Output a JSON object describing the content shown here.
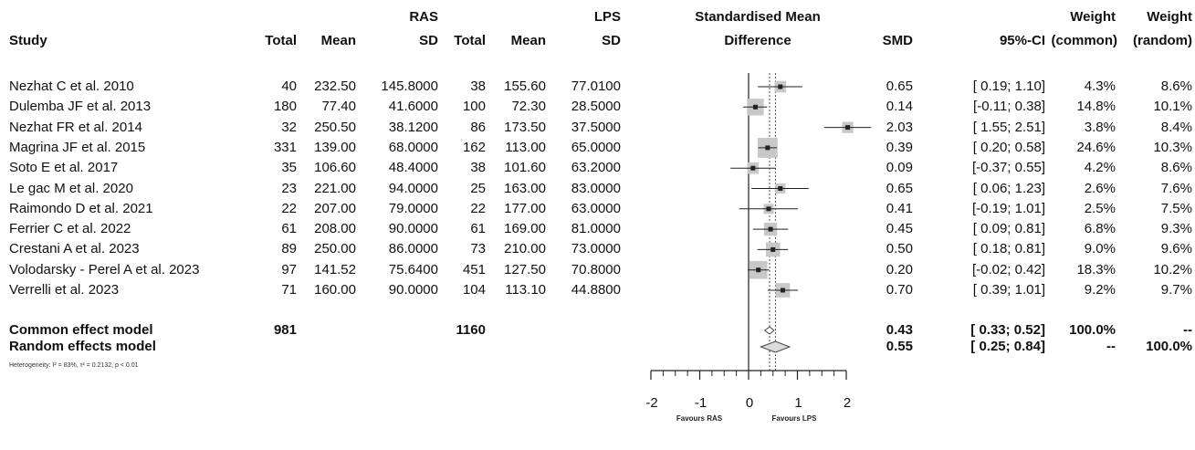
{
  "chart_data": {
    "type": "forest",
    "group_labels": {
      "ras": "RAS",
      "lps": "LPS"
    },
    "headers": {
      "study": "Study",
      "ras_total": "Total",
      "ras_mean": "Mean",
      "ras_sd": "SD",
      "lps_total": "Total",
      "lps_mean": "Mean",
      "lps_sd": "SD",
      "plot_title_1": "Standardised Mean",
      "plot_title_2": "Difference",
      "smd": "SMD",
      "ci": "95%-CI",
      "w_common_1": "Weight",
      "w_common_2": "(common)",
      "w_random_1": "Weight",
      "w_random_2": "(random)"
    },
    "studies": [
      {
        "study": "Nezhat C et al. 2010",
        "ras_total": "40",
        "ras_mean": "232.50",
        "ras_sd": "145.8000",
        "lps_total": "38",
        "lps_mean": "155.60",
        "lps_sd": "77.0100",
        "smd": 0.65,
        "lower": 0.19,
        "upper": 1.1,
        "smd_text": "0.65",
        "ci_text": "[ 0.19; 1.10]",
        "w_common": "4.3%",
        "w_random": "8.6%"
      },
      {
        "study": "Dulemba JF et al. 2013",
        "ras_total": "180",
        "ras_mean": "77.40",
        "ras_sd": "41.6000",
        "lps_total": "100",
        "lps_mean": "72.30",
        "lps_sd": "28.5000",
        "smd": 0.14,
        "lower": -0.11,
        "upper": 0.38,
        "smd_text": "0.14",
        "ci_text": "[-0.11; 0.38]",
        "w_common": "14.8%",
        "w_random": "10.1%"
      },
      {
        "study": "Nezhat FR et al. 2014",
        "ras_total": "32",
        "ras_mean": "250.50",
        "ras_sd": "38.1200",
        "lps_total": "86",
        "lps_mean": "173.50",
        "lps_sd": "37.5000",
        "smd": 2.03,
        "lower": 1.55,
        "upper": 2.51,
        "smd_text": "2.03",
        "ci_text": "[ 1.55; 2.51]",
        "w_common": "3.8%",
        "w_random": "8.4%"
      },
      {
        "study": "Magrina JF et al. 2015",
        "ras_total": "331",
        "ras_mean": "139.00",
        "ras_sd": "68.0000",
        "lps_total": "162",
        "lps_mean": "113.00",
        "lps_sd": "65.0000",
        "smd": 0.39,
        "lower": 0.2,
        "upper": 0.58,
        "smd_text": "0.39",
        "ci_text": "[ 0.20; 0.58]",
        "w_common": "24.6%",
        "w_random": "10.3%"
      },
      {
        "study": "Soto E et al. 2017",
        "ras_total": "35",
        "ras_mean": "106.60",
        "ras_sd": "48.4000",
        "lps_total": "38",
        "lps_mean": "101.60",
        "lps_sd": "63.2000",
        "smd": 0.09,
        "lower": -0.37,
        "upper": 0.55,
        "smd_text": "0.09",
        "ci_text": "[-0.37; 0.55]",
        "w_common": "4.2%",
        "w_random": "8.6%"
      },
      {
        "study": "Le gac M et al. 2020",
        "ras_total": "23",
        "ras_mean": "221.00",
        "ras_sd": "94.0000",
        "lps_total": "25",
        "lps_mean": "163.00",
        "lps_sd": "83.0000",
        "smd": 0.65,
        "lower": 0.06,
        "upper": 1.23,
        "smd_text": "0.65",
        "ci_text": "[ 0.06; 1.23]",
        "w_common": "2.6%",
        "w_random": "7.6%"
      },
      {
        "study": "Raimondo D et al. 2021",
        "ras_total": "22",
        "ras_mean": "207.00",
        "ras_sd": "79.0000",
        "lps_total": "22",
        "lps_mean": "177.00",
        "lps_sd": "63.0000",
        "smd": 0.41,
        "lower": -0.19,
        "upper": 1.01,
        "smd_text": "0.41",
        "ci_text": "[-0.19; 1.01]",
        "w_common": "2.5%",
        "w_random": "7.5%"
      },
      {
        "study": "Ferrier C et al. 2022",
        "ras_total": "61",
        "ras_mean": "208.00",
        "ras_sd": "90.0000",
        "lps_total": "61",
        "lps_mean": "169.00",
        "lps_sd": "81.0000",
        "smd": 0.45,
        "lower": 0.09,
        "upper": 0.81,
        "smd_text": "0.45",
        "ci_text": "[ 0.09; 0.81]",
        "w_common": "6.8%",
        "w_random": "9.3%"
      },
      {
        "study": "Crestani A et al. 2023",
        "ras_total": "89",
        "ras_mean": "250.00",
        "ras_sd": "86.0000",
        "lps_total": "73",
        "lps_mean": "210.00",
        "lps_sd": "73.0000",
        "smd": 0.5,
        "lower": 0.18,
        "upper": 0.81,
        "smd_text": "0.50",
        "ci_text": "[ 0.18; 0.81]",
        "w_common": "9.0%",
        "w_random": "9.6%"
      },
      {
        "study": "Volodarsky - Perel A et al. 2023",
        "ras_total": "97",
        "ras_mean": "141.52",
        "ras_sd": "75.6400",
        "lps_total": "451",
        "lps_mean": "127.50",
        "lps_sd": "70.8000",
        "smd": 0.2,
        "lower": -0.02,
        "upper": 0.42,
        "smd_text": "0.20",
        "ci_text": "[-0.02; 0.42]",
        "w_common": "18.3%",
        "w_random": "10.2%"
      },
      {
        "study": "Verrelli et al. 2023",
        "ras_total": "71",
        "ras_mean": "160.00",
        "ras_sd": "90.0000",
        "lps_total": "104",
        "lps_mean": "113.10",
        "lps_sd": "44.8800",
        "smd": 0.7,
        "lower": 0.39,
        "upper": 1.01,
        "smd_text": "0.70",
        "ci_text": "[ 0.39; 1.01]",
        "w_common": "9.2%",
        "w_random": "9.7%"
      }
    ],
    "summaries": [
      {
        "label": "Common effect model",
        "ras_total": "981",
        "lps_total": "1160",
        "smd": 0.43,
        "lower": 0.33,
        "upper": 0.52,
        "smd_text": "0.43",
        "ci_text": "[ 0.33; 0.52]",
        "w_common": "100.0%",
        "w_random": "--",
        "filled": false
      },
      {
        "label": "Random effects model",
        "ras_total": "",
        "lps_total": "",
        "smd": 0.55,
        "lower": 0.25,
        "upper": 0.84,
        "smd_text": "0.55",
        "ci_text": "[ 0.25; 0.84]",
        "w_common": "--",
        "w_random": "100.0%",
        "filled": false
      }
    ],
    "heterogeneity": "Heterogeneity: I² = 83%, τ² = 0.2132, p < 0.01",
    "x_axis": {
      "min": -2,
      "max": 2,
      "ticks": [
        -2,
        -1,
        0,
        1,
        2
      ],
      "tick_labels": [
        "-2",
        "-1",
        "0",
        "1",
        "2"
      ]
    },
    "favours_left": "Favours RAS",
    "favours_right": "Favours LPS",
    "colors": {
      "marker": "#8c8c8c",
      "box": "#c8c8c8",
      "line": "#222222",
      "reference_line": "#555555"
    }
  }
}
